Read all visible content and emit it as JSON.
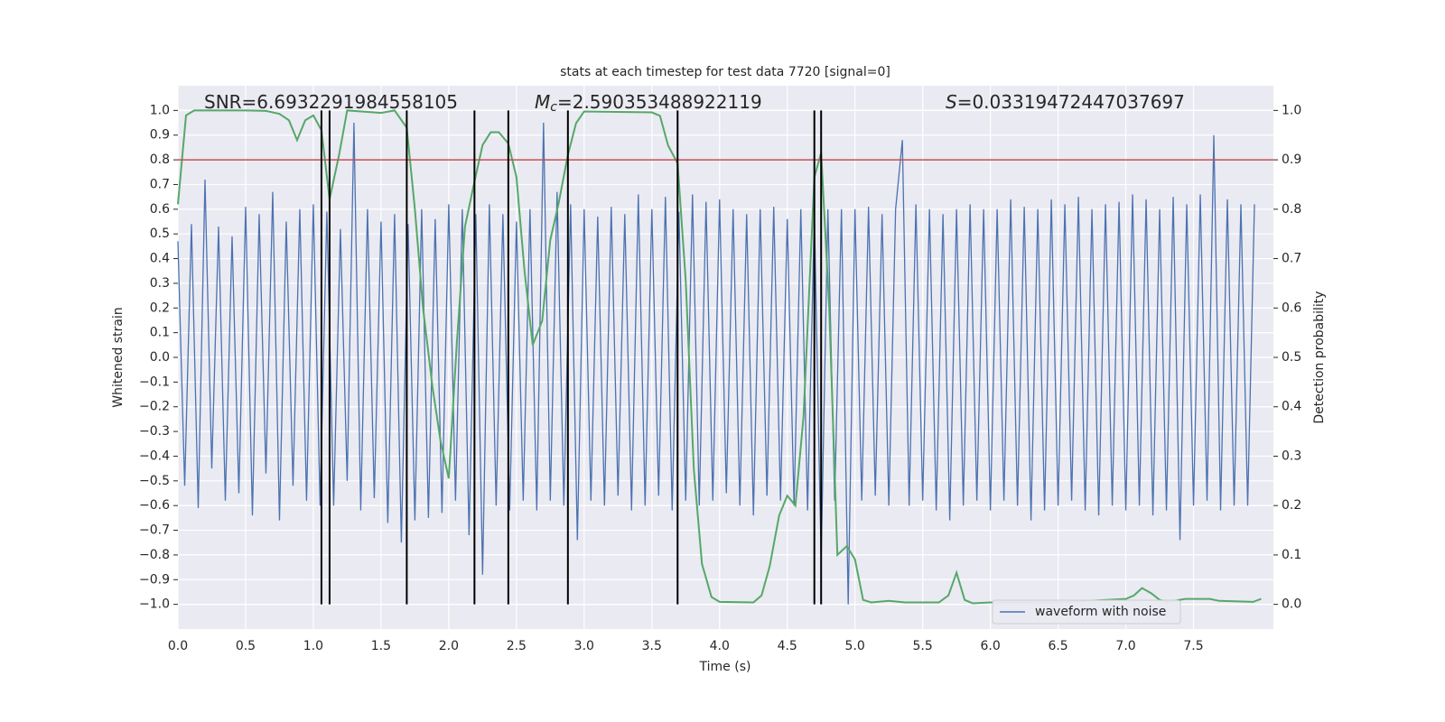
{
  "chart_data": {
    "type": "line",
    "title": "stats at each timestep for test data 7720 [signal=0]",
    "xlabel": "Time (s)",
    "ylabel": "Whitened strain",
    "y2label": "Detection probability",
    "annotations": [
      {
        "text": "SNR=6.6932291984558105"
      },
      {
        "symbol": "M",
        "subscript": "c",
        "text": "=2.590353488922119"
      },
      {
        "symbol": "S",
        "text": "=0.03319472447037697"
      }
    ],
    "xlim": [
      0,
      8.09
    ],
    "ylim": [
      -1.1,
      1.1
    ],
    "y2lim": [
      -0.05,
      1.05
    ],
    "xticks": [
      {
        "value": 0,
        "label": "0.0"
      },
      0.5,
      {
        "value": 1,
        "label": "1.0"
      },
      1.5,
      {
        "value": 2,
        "label": "2.0"
      },
      2.5,
      {
        "value": 3,
        "label": "3.0"
      },
      3.5,
      {
        "value": 4,
        "label": "4.0"
      },
      4.5,
      {
        "value": 5,
        "label": "5.0"
      },
      5.5,
      {
        "value": 6,
        "label": "6.0"
      },
      6.5,
      {
        "value": 7,
        "label": "7.0"
      },
      7.5
    ],
    "yticks": [
      {
        "value": 1,
        "label": "1.0"
      },
      0.9,
      0.8,
      0.7,
      0.6,
      0.5,
      0.4,
      0.3,
      0.2,
      0.1,
      {
        "value": 0,
        "label": "0.0"
      },
      {
        "value": -0.1,
        "label": "−0.1"
      },
      {
        "value": -0.2,
        "label": "−0.2"
      },
      {
        "value": -0.3,
        "label": "−0.3"
      },
      {
        "value": -0.4,
        "label": "−0.4"
      },
      {
        "value": -0.5,
        "label": "−0.5"
      },
      {
        "value": -0.6,
        "label": "−0.6"
      },
      {
        "value": -0.7,
        "label": "−0.7"
      },
      {
        "value": -0.8,
        "label": "−0.8"
      },
      {
        "value": -0.9,
        "label": "−0.9"
      },
      {
        "value": -1,
        "label": "−1.0"
      }
    ],
    "y2ticks": [
      {
        "value": 1,
        "label": "1.0"
      },
      0.9,
      0.8,
      0.7,
      0.6,
      0.5,
      0.4,
      0.3,
      0.2,
      0.1,
      {
        "value": 0,
        "label": "0.0"
      }
    ],
    "grid": true,
    "legend": "lower right",
    "threshold": {
      "value": 0.8,
      "color": "#c44e52"
    },
    "vlines": {
      "x": [
        1.06,
        1.12,
        1.69,
        2.19,
        2.44,
        2.88,
        3.69,
        4.7,
        4.75
      ],
      "range": [
        -1,
        1
      ],
      "color": "#000000"
    },
    "series": [
      {
        "name": "waveform with noise",
        "color": "#4c72b0",
        "x": [
          0,
          0.05,
          0.1,
          0.15,
          0.2,
          0.25,
          0.3,
          0.35,
          0.4,
          0.45,
          0.5,
          0.55,
          0.6,
          0.65,
          0.7,
          0.75,
          0.8,
          0.85,
          0.9,
          0.95,
          1,
          1.05,
          1.1,
          1.15,
          1.2,
          1.25,
          1.3,
          1.35,
          1.4,
          1.45,
          1.5,
          1.55,
          1.6,
          1.65,
          1.7,
          1.75,
          1.8,
          1.85,
          1.9,
          1.95,
          2,
          2.05,
          2.1,
          2.15,
          2.2,
          2.25,
          2.3,
          2.35,
          2.4,
          2.45,
          2.5,
          2.55,
          2.6,
          2.65,
          2.7,
          2.75,
          2.8,
          2.85,
          2.9,
          2.95,
          3,
          3.05,
          3.1,
          3.15,
          3.2,
          3.25,
          3.3,
          3.35,
          3.4,
          3.45,
          3.5,
          3.55,
          3.6,
          3.65,
          3.7,
          3.75,
          3.8,
          3.85,
          3.9,
          3.95,
          4,
          4.05,
          4.1,
          4.15,
          4.2,
          4.25,
          4.3,
          4.35,
          4.4,
          4.45,
          4.5,
          4.55,
          4.6,
          4.65,
          4.7,
          4.75,
          4.8,
          4.85,
          4.9,
          4.95,
          5,
          5.05,
          5.1,
          5.15,
          5.2,
          5.25,
          5.3,
          5.35,
          5.4,
          5.45,
          5.5,
          5.55,
          5.6,
          5.65,
          5.7,
          5.75,
          5.8,
          5.85,
          5.9,
          5.95,
          6,
          6.05,
          6.1,
          6.15,
          6.2,
          6.25,
          6.3,
          6.35,
          6.4,
          6.45,
          6.5,
          6.55,
          6.6,
          6.65,
          6.7,
          6.75,
          6.8,
          6.85,
          6.9,
          6.95,
          7,
          7.05,
          7.1,
          7.15,
          7.2,
          7.25,
          7.3,
          7.35,
          7.4,
          7.45,
          7.5,
          7.55,
          7.6,
          7.65,
          7.7,
          7.75,
          7.8,
          7.85,
          7.9,
          7.95
        ],
        "values": [
          0.47,
          -0.52,
          0.54,
          -0.61,
          0.72,
          -0.45,
          0.53,
          -0.58,
          0.49,
          -0.55,
          0.61,
          -0.64,
          0.58,
          -0.47,
          0.67,
          -0.66,
          0.55,
          -0.52,
          0.6,
          -0.58,
          0.62,
          -0.6,
          0.59,
          -0.6,
          0.52,
          -0.5,
          0.95,
          -0.62,
          0.6,
          -0.57,
          0.55,
          -0.67,
          0.58,
          -0.75,
          0.54,
          -0.66,
          0.6,
          -0.65,
          0.56,
          -0.63,
          0.62,
          -0.58,
          0.6,
          -0.72,
          0.58,
          -0.88,
          0.62,
          -0.6,
          0.58,
          -0.62,
          0.55,
          -0.58,
          0.6,
          -0.62,
          0.95,
          -0.58,
          0.67,
          -0.6,
          0.62,
          -0.74,
          0.6,
          -0.58,
          0.57,
          -0.6,
          0.61,
          -0.56,
          0.58,
          -0.62,
          0.66,
          -0.6,
          0.6,
          -0.56,
          0.65,
          -0.62,
          0.59,
          -0.58,
          0.66,
          -0.6,
          0.63,
          -0.58,
          0.64,
          -0.55,
          0.6,
          -0.6,
          0.58,
          -0.64,
          0.6,
          -0.56,
          0.61,
          -0.58,
          0.56,
          -0.6,
          0.6,
          -0.62,
          0.58,
          -0.82,
          0.6,
          -0.58,
          0.6,
          -1.0,
          0.6,
          -0.58,
          0.61,
          -0.56,
          0.58,
          -0.6,
          0.6,
          0.88,
          -0.6,
          0.62,
          -0.58,
          0.6,
          -0.62,
          0.58,
          -0.66,
          0.6,
          -0.6,
          0.62,
          -0.58,
          0.6,
          -0.62,
          0.6,
          -0.58,
          0.64,
          -0.6,
          0.61,
          -0.66,
          0.6,
          -0.62,
          0.64,
          -0.6,
          0.62,
          -0.58,
          0.65,
          -0.62,
          0.6,
          -0.64,
          0.62,
          -0.6,
          0.63,
          -0.62,
          0.66,
          -0.6,
          0.64,
          -0.64,
          0.6,
          -0.62,
          0.65,
          -0.74,
          0.62,
          -0.6,
          0.66,
          -0.58,
          0.9,
          -0.62,
          0.64,
          -0.6,
          0.62,
          -0.6,
          0.62
        ]
      },
      {
        "color": "#55a868",
        "axis": "y2",
        "x": [
          0,
          0.06,
          0.12,
          0.5,
          0.65,
          0.75,
          0.82,
          0.88,
          0.94,
          1,
          1.06,
          1.12,
          1.19,
          1.25,
          1.5,
          1.6,
          1.69,
          1.75,
          1.81,
          1.88,
          1.94,
          2,
          2.06,
          2.12,
          2.19,
          2.25,
          2.31,
          2.37,
          2.44,
          2.5,
          2.56,
          2.62,
          2.69,
          2.75,
          2.81,
          2.88,
          2.94,
          3,
          3.5,
          3.56,
          3.62,
          3.69,
          3.75,
          3.81,
          3.87,
          3.94,
          4,
          4.25,
          4.31,
          4.37,
          4.44,
          4.5,
          4.56,
          4.62,
          4.7,
          4.75,
          4.81,
          4.87,
          4.94,
          5,
          5.06,
          5.12,
          5.25,
          5.37,
          5.62,
          5.69,
          5.75,
          5.81,
          5.87,
          6,
          6.5,
          7,
          7.06,
          7.12,
          7.19,
          7.25,
          7.31,
          7.44,
          7.62,
          7.69,
          7.94,
          8
        ],
        "values": [
          0.81,
          0.99,
          1,
          1,
          0.999,
          0.993,
          0.98,
          0.94,
          0.98,
          0.99,
          0.96,
          0.82,
          0.91,
          1,
          0.995,
          1,
          0.965,
          0.8,
          0.6,
          0.44,
          0.33,
          0.255,
          0.53,
          0.765,
          0.856,
          0.93,
          0.956,
          0.956,
          0.933,
          0.865,
          0.674,
          0.525,
          0.574,
          0.738,
          0.81,
          0.91,
          0.974,
          0.998,
          0.996,
          0.989,
          0.929,
          0.893,
          0.656,
          0.273,
          0.082,
          0.015,
          0.005,
          0.004,
          0.018,
          0.077,
          0.18,
          0.22,
          0.2,
          0.38,
          0.865,
          0.914,
          0.6,
          0.1,
          0.118,
          0.091,
          0.009,
          0.004,
          0.007,
          0.004,
          0.004,
          0.018,
          0.064,
          0.009,
          0.002,
          0.004,
          0.004,
          0.011,
          0.018,
          0.033,
          0.022,
          0.009,
          0.005,
          0.011,
          0.011,
          0.007,
          0.005,
          0.011
        ]
      }
    ]
  }
}
